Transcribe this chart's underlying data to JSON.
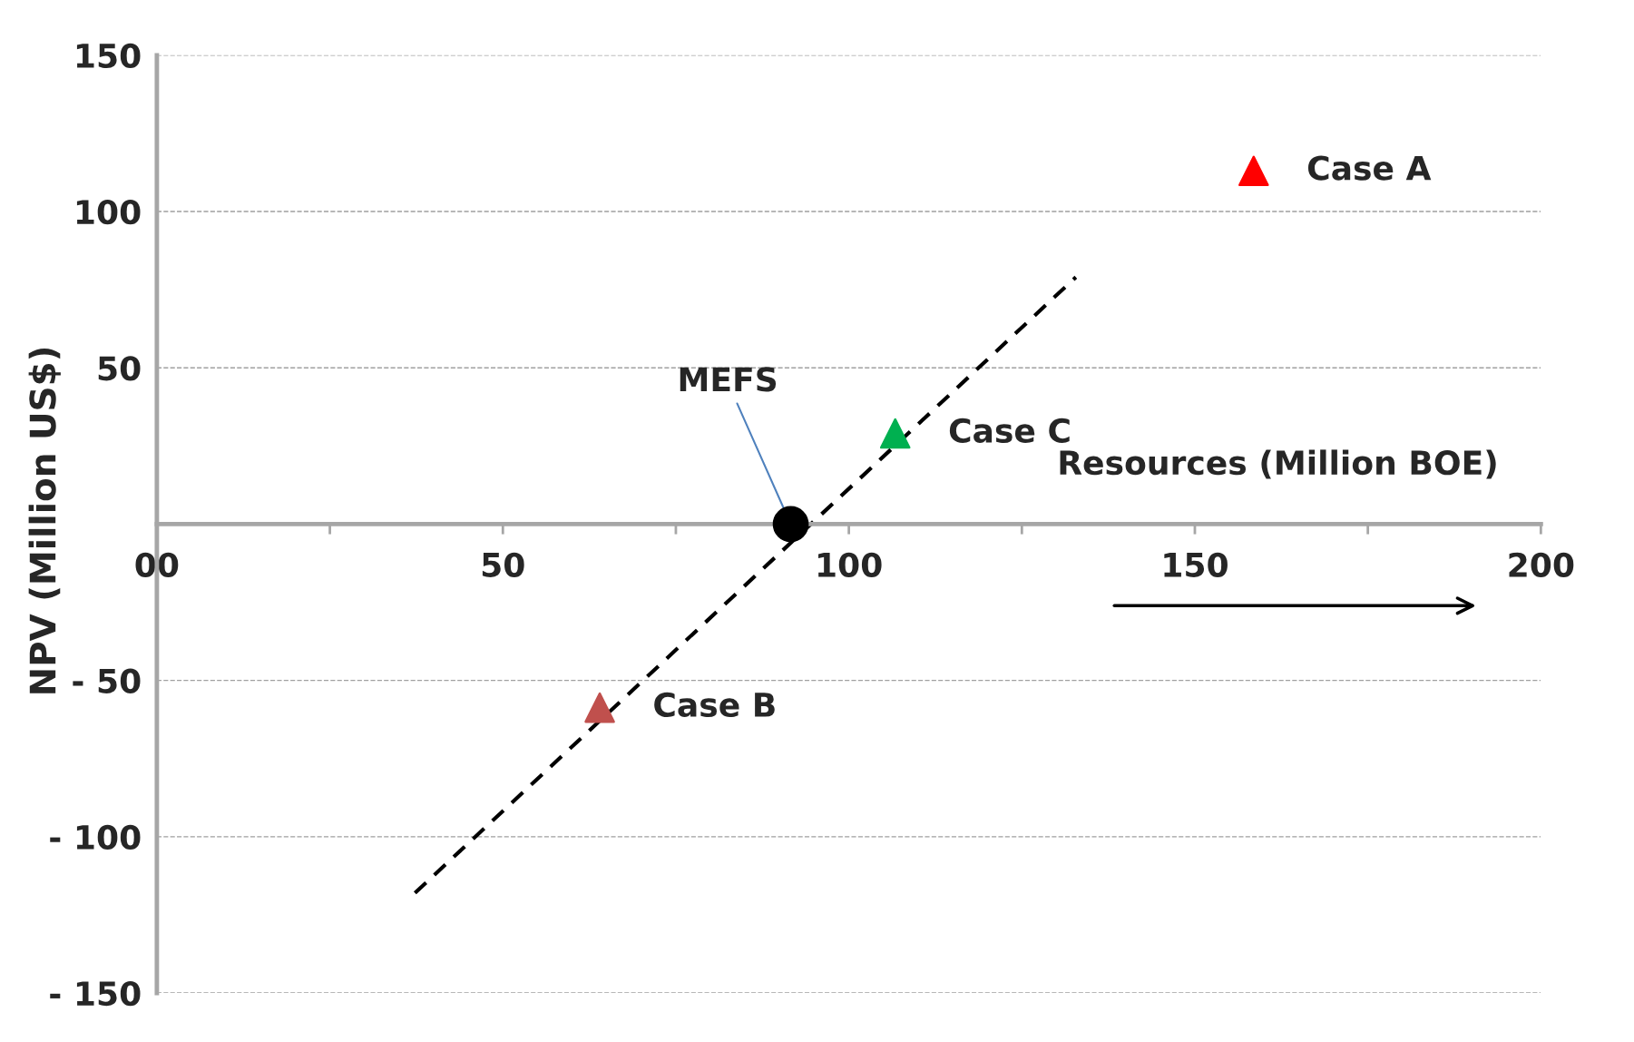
{
  "chart_data": {
    "type": "scatter",
    "xlabel": "Resources (Million BOE)",
    "ylabel": "NPV (Million US$)",
    "xlim": [
      0,
      200
    ],
    "ylim": [
      -150,
      150
    ],
    "xticks": [
      {
        "value": 0,
        "label": "00"
      },
      {
        "value": 25,
        "label": null
      },
      50,
      {
        "value": 75,
        "label": null
      },
      100,
      {
        "value": 125,
        "label": null
      },
      150,
      {
        "value": 175,
        "label": null
      },
      200
    ],
    "yticks": [
      {
        "value": -150,
        "label": "- 150"
      },
      {
        "value": -100,
        "label": "- 100"
      },
      {
        "value": -50,
        "label": "- 50"
      },
      50,
      100,
      150
    ],
    "grid": "y",
    "legend": false,
    "series": [
      {
        "type": "line",
        "color": "#000000",
        "line_style": "dashed",
        "marker": "none",
        "x": [
          37.3,
          132.8
        ],
        "values": [
          -118,
          79
        ]
      },
      {
        "name": "Case A",
        "color": "#ff0000",
        "marker": "triangle",
        "x": [
          158.5
        ],
        "values": [
          113
        ]
      },
      {
        "name": "Case C",
        "color": "#00b050",
        "marker": "triangle",
        "x": [
          106.7
        ],
        "values": [
          29
        ]
      },
      {
        "name": "Case B",
        "color": "#c0504d",
        "marker": "triangle",
        "x": [
          64
        ],
        "values": [
          -58.7
        ]
      },
      {
        "color": "#000000",
        "marker": "circle",
        "x": [
          91.6
        ],
        "values": [
          0
        ]
      }
    ],
    "annotations": [
      {
        "text": "MEFS",
        "x": 91.6,
        "y": 0
      }
    ]
  }
}
